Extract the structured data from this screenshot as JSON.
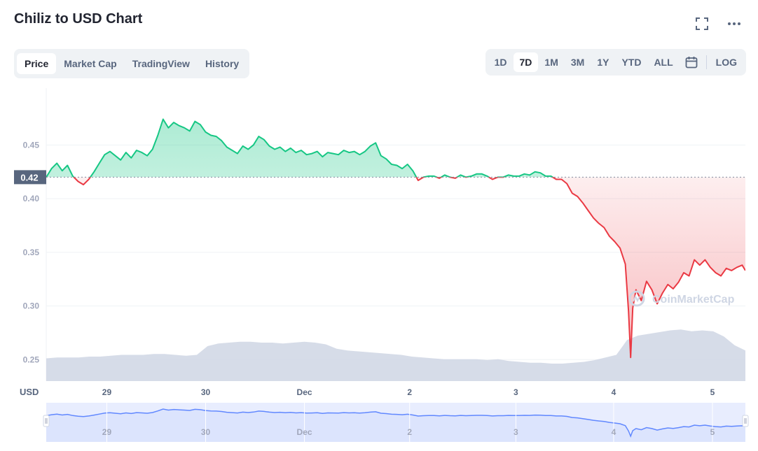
{
  "header": {
    "title": "Chiliz to USD Chart",
    "tabs": [
      {
        "label": "Price"
      },
      {
        "label": "Market Cap"
      },
      {
        "label": "TradingView"
      },
      {
        "label": "History"
      }
    ],
    "ranges": [
      {
        "label": "1D"
      },
      {
        "label": "7D"
      },
      {
        "label": "1M"
      },
      {
        "label": "3M"
      },
      {
        "label": "1Y"
      },
      {
        "label": "YTD"
      },
      {
        "label": "ALL"
      }
    ],
    "log_label": "LOG",
    "icons": {
      "fullscreen": "fullscreen-icon",
      "more": "more-icon",
      "calendar": "calendar-icon"
    }
  },
  "chart_data": {
    "type": "line",
    "title": "Chiliz to USD Chart",
    "ylabel": "USD",
    "ylim": [
      0.23,
      0.503
    ],
    "y_ticks": [
      0.25,
      0.3,
      0.35,
      0.4,
      0.45
    ],
    "y_tick_labels": [
      "0.25",
      "0.30",
      "0.35",
      "0.40",
      "0.45"
    ],
    "x_tick_labels": [
      "29",
      "30",
      "Dec",
      "2",
      "3",
      "4",
      "5"
    ],
    "x_range": [
      0,
      6.58
    ],
    "x_tick_positions": [
      0.57,
      1.5,
      2.43,
      3.42,
      4.42,
      5.34,
      6.27
    ],
    "reference_price": 0.42,
    "reference_label": "0.42",
    "watermark": "CoinMarketCap",
    "colors": {
      "up": "#16c784",
      "down": "#ea3943",
      "volume": "#cfd6e4",
      "navigator": "#6188ff",
      "grid": "#eff2f5",
      "axis_text": "#58667e"
    },
    "series": [
      {
        "x": [
          0,
          0.05,
          0.1,
          0.15,
          0.2,
          0.25,
          0.3,
          0.35,
          0.4,
          0.45,
          0.5,
          0.55,
          0.6,
          0.65,
          0.7,
          0.75,
          0.8,
          0.85,
          0.9,
          0.95,
          1.0,
          1.05,
          1.1,
          1.15,
          1.2,
          1.25,
          1.3,
          1.35,
          1.4,
          1.45,
          1.5,
          1.55,
          1.6,
          1.65,
          1.7,
          1.75,
          1.8,
          1.85,
          1.9,
          1.95,
          2.0,
          2.05,
          2.1,
          2.15,
          2.2,
          2.25,
          2.3,
          2.35,
          2.4,
          2.45,
          2.5,
          2.55,
          2.6,
          2.65,
          2.7,
          2.75,
          2.8,
          2.85,
          2.9,
          2.95,
          3.0,
          3.05,
          3.1,
          3.15,
          3.2,
          3.25,
          3.3,
          3.35,
          3.4,
          3.45,
          3.5,
          3.55,
          3.6,
          3.65,
          3.7,
          3.75,
          3.8,
          3.85,
          3.9,
          3.95,
          4.0,
          4.05,
          4.1,
          4.15,
          4.2,
          4.25,
          4.3,
          4.35,
          4.4,
          4.45,
          4.5,
          4.55,
          4.6,
          4.65,
          4.7,
          4.75,
          4.8,
          4.85,
          4.9,
          4.95,
          5.0,
          5.05,
          5.1,
          5.15,
          5.2,
          5.25,
          5.3,
          5.35,
          5.4,
          5.45,
          5.48,
          5.5,
          5.52,
          5.55,
          5.6,
          5.65,
          5.7,
          5.75,
          5.8,
          5.85,
          5.9,
          5.95,
          6.0,
          6.05,
          6.1,
          6.15,
          6.2,
          6.25,
          6.3,
          6.35,
          6.4,
          6.45,
          6.5,
          6.55,
          6.58
        ],
        "price": [
          0.42,
          0.428,
          0.433,
          0.426,
          0.431,
          0.421,
          0.416,
          0.413,
          0.418,
          0.425,
          0.433,
          0.441,
          0.444,
          0.44,
          0.436,
          0.443,
          0.438,
          0.445,
          0.443,
          0.44,
          0.446,
          0.459,
          0.474,
          0.466,
          0.471,
          0.468,
          0.466,
          0.463,
          0.472,
          0.469,
          0.462,
          0.459,
          0.458,
          0.454,
          0.448,
          0.445,
          0.442,
          0.449,
          0.446,
          0.45,
          0.458,
          0.455,
          0.449,
          0.446,
          0.448,
          0.444,
          0.447,
          0.443,
          0.445,
          0.441,
          0.442,
          0.444,
          0.439,
          0.443,
          0.442,
          0.441,
          0.445,
          0.443,
          0.444,
          0.441,
          0.444,
          0.449,
          0.452,
          0.44,
          0.437,
          0.432,
          0.431,
          0.428,
          0.432,
          0.426,
          0.417,
          0.42,
          0.421,
          0.421,
          0.419,
          0.422,
          0.42,
          0.419,
          0.422,
          0.42,
          0.421,
          0.423,
          0.423,
          0.421,
          0.418,
          0.42,
          0.42,
          0.422,
          0.421,
          0.421,
          0.423,
          0.422,
          0.425,
          0.424,
          0.421,
          0.421,
          0.418,
          0.418,
          0.414,
          0.405,
          0.402,
          0.396,
          0.389,
          0.382,
          0.377,
          0.373,
          0.365,
          0.36,
          0.354,
          0.339,
          0.295,
          0.252,
          0.298,
          0.315,
          0.305,
          0.323,
          0.315,
          0.302,
          0.312,
          0.32,
          0.316,
          0.322,
          0.331,
          0.328,
          0.343,
          0.338,
          0.343,
          0.336,
          0.331,
          0.328,
          0.335,
          0.333,
          0.336,
          0.338,
          0.333
        ]
      }
    ],
    "volume": [
      0.26,
      0.27,
      0.27,
      0.27,
      0.28,
      0.28,
      0.29,
      0.3,
      0.3,
      0.3,
      0.31,
      0.31,
      0.3,
      0.29,
      0.3,
      0.4,
      0.43,
      0.44,
      0.45,
      0.45,
      0.44,
      0.44,
      0.43,
      0.44,
      0.45,
      0.44,
      0.42,
      0.37,
      0.35,
      0.34,
      0.33,
      0.32,
      0.31,
      0.3,
      0.28,
      0.27,
      0.26,
      0.25,
      0.25,
      0.25,
      0.25,
      0.24,
      0.25,
      0.23,
      0.22,
      0.21,
      0.21,
      0.2,
      0.2,
      0.21,
      0.22,
      0.24,
      0.27,
      0.3,
      0.47,
      0.52,
      0.54,
      0.56,
      0.58,
      0.59,
      0.57,
      0.58,
      0.57,
      0.51,
      0.41,
      0.35
    ]
  }
}
